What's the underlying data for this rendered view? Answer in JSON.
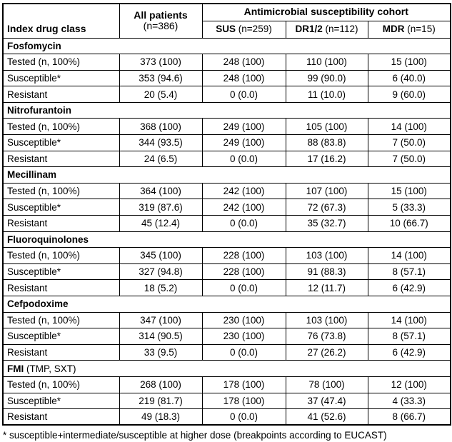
{
  "table": {
    "header": {
      "index_col": "Index drug class",
      "all_patients_line1": "All patients",
      "all_patients_line2": "(n=386)",
      "cohort": "Antimicrobial susceptibility cohort",
      "subcols": [
        {
          "name": "SUS",
          "n": "(n=259)"
        },
        {
          "name": "DR1/2",
          "n": "(n=112)"
        },
        {
          "name": "MDR",
          "n": "(n=15)"
        }
      ]
    },
    "sections": [
      {
        "name": "Fosfomycin",
        "suffix": "",
        "rows": [
          {
            "label": "Tested (n, 100%)",
            "values": [
              "373 (100)",
              "248 (100)",
              "110 (100)",
              "15 (100)"
            ]
          },
          {
            "label": "Susceptible*",
            "values": [
              "353 (94.6)",
              "248 (100)",
              "99 (90.0)",
              "6 (40.0)"
            ]
          },
          {
            "label": "Resistant",
            "values": [
              "20 (5.4)",
              "0 (0.0)",
              "11 (10.0)",
              "9 (60.0)"
            ]
          }
        ]
      },
      {
        "name": "Nitrofurantoin",
        "suffix": "",
        "rows": [
          {
            "label": "Tested (n, 100%)",
            "values": [
              "368 (100)",
              "249 (100)",
              "105 (100)",
              "14 (100)"
            ]
          },
          {
            "label": "Susceptible*",
            "values": [
              "344 (93.5)",
              "249 (100)",
              "88 (83.8)",
              "7 (50.0)"
            ]
          },
          {
            "label": "Resistant",
            "values": [
              "24 (6.5)",
              "0 (0.0)",
              "17 (16.2)",
              "7 (50.0)"
            ]
          }
        ]
      },
      {
        "name": "Mecillinam",
        "suffix": "",
        "rows": [
          {
            "label": "Tested (n, 100%)",
            "values": [
              "364 (100)",
              "242 (100)",
              "107 (100)",
              "15 (100)"
            ]
          },
          {
            "label": "Susceptible*",
            "values": [
              "319 (87.6)",
              "242 (100)",
              "72 (67.3)",
              "5 (33.3)"
            ]
          },
          {
            "label": "Resistant",
            "values": [
              "45 (12.4)",
              "0 (0.0)",
              "35 (32.7)",
              "10 (66.7)"
            ]
          }
        ]
      },
      {
        "name": "Fluoroquinolones",
        "suffix": "",
        "rows": [
          {
            "label": "Tested (n, 100%)",
            "values": [
              "345 (100)",
              "228 (100)",
              "103 (100)",
              "14 (100)"
            ]
          },
          {
            "label": "Susceptible*",
            "values": [
              "327 (94.8)",
              "228 (100)",
              "91 (88.3)",
              "8 (57.1)"
            ]
          },
          {
            "label": "Resistant",
            "values": [
              "18 (5.2)",
              "0 (0.0)",
              "12 (11.7)",
              "6 (42.9)"
            ]
          }
        ]
      },
      {
        "name": "Cefpodoxime",
        "suffix": "",
        "rows": [
          {
            "label": "Tested (n, 100%)",
            "values": [
              "347 (100)",
              "230 (100)",
              "103 (100)",
              "14 (100)"
            ]
          },
          {
            "label": "Susceptible*",
            "values": [
              "314 (90.5)",
              "230 (100)",
              "76 (73.8)",
              "8 (57.1)"
            ]
          },
          {
            "label": "Resistant",
            "values": [
              "33 (9.5)",
              "0 (0.0)",
              "27 (26.2)",
              "6 (42.9)"
            ]
          }
        ]
      },
      {
        "name": "FMI",
        "suffix": " (TMP, SXT)",
        "rows": [
          {
            "label": "Tested (n, 100%)",
            "values": [
              "268 (100)",
              "178 (100)",
              "78 (100)",
              "12 (100)"
            ]
          },
          {
            "label": "Susceptible*",
            "values": [
              "219 (81.7)",
              "178 (100)",
              "37 (47.4)",
              "4 (33.3)"
            ]
          },
          {
            "label": "Resistant",
            "values": [
              "49 (18.3)",
              "0 (0.0)",
              "41 (52.6)",
              "8 (66.7)"
            ]
          }
        ]
      }
    ],
    "footnote": "* susceptible+intermediate/susceptible at higher dose (breakpoints according to EUCAST)"
  }
}
